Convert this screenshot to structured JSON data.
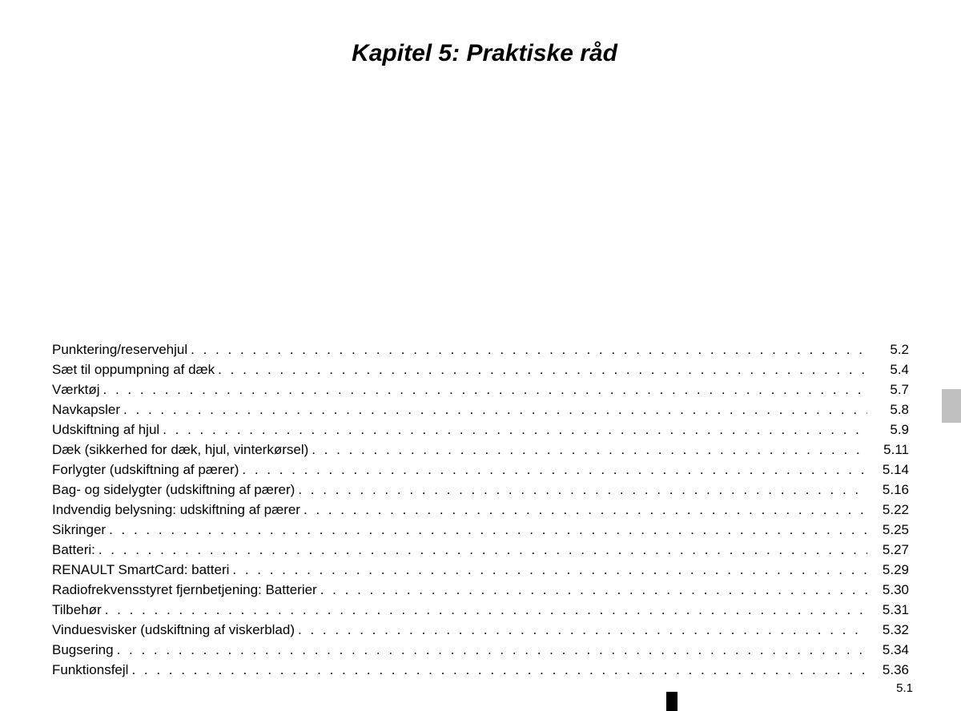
{
  "title": "Kapitel 5: Praktiske råd",
  "toc": [
    {
      "label": "Punktering/reservehjul",
      "page": "5.2"
    },
    {
      "label": "Sæt til oppumpning af dæk",
      "page": "5.4"
    },
    {
      "label": "Værktøj",
      "page": "5.7"
    },
    {
      "label": "Navkapsler",
      "page": "5.8"
    },
    {
      "label": "Udskiftning af hjul",
      "page": "5.9"
    },
    {
      "label": "Dæk (sikkerhed for dæk, hjul, vinterkørsel)",
      "page": "5.11"
    },
    {
      "label": "Forlygter (udskiftning af pærer)",
      "page": "5.14"
    },
    {
      "label": "Bag- og sidelygter (udskiftning af pærer)",
      "page": "5.16"
    },
    {
      "label": "Indvendig belysning: udskiftning af pærer",
      "page": "5.22"
    },
    {
      "label": "Sikringer",
      "page": "5.25"
    },
    {
      "label": "Batteri:",
      "page": "5.27"
    },
    {
      "label": "RENAULT SmartCard: batteri",
      "page": "5.29"
    },
    {
      "label": "Radiofrekvensstyret fjernbetjening: Batterier",
      "page": "5.30"
    },
    {
      "label": "Tilbehør",
      "page": "5.31"
    },
    {
      "label": "Vinduesvisker (udskiftning af viskerblad)",
      "page": "5.32"
    },
    {
      "label": "Bugsering",
      "page": "5.34"
    },
    {
      "label": "Funktionsfejl",
      "page": "5.36"
    }
  ],
  "page_number": "5.1",
  "colors": {
    "background": "#ffffff",
    "text": "#000000",
    "tab": "#c0c0c0"
  },
  "typography": {
    "title_fontsize": 30,
    "body_fontsize": 17,
    "page_num_fontsize": 15,
    "line_height": 25
  }
}
